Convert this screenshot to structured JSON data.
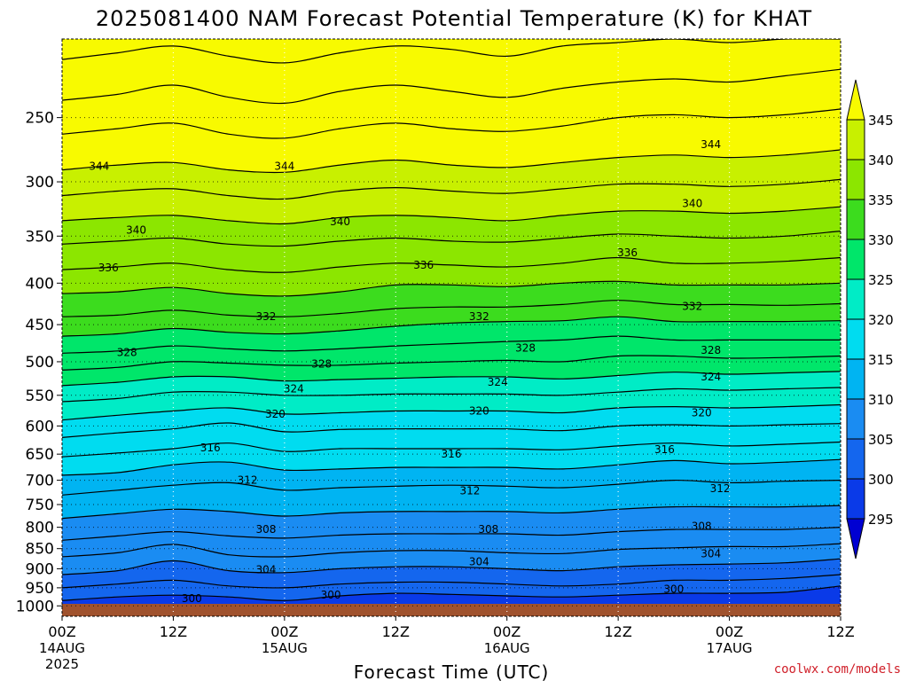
{
  "chart_data": {
    "type": "contour",
    "title": "2025081400 NAM Forecast Potential Temperature (K) for KHAT",
    "xlabel": "Forecast Time (UTC)",
    "credit": "coolwx.com/models",
    "y_scale": "log-pressure",
    "y_range_hPa": [
      200,
      1030
    ],
    "y_ticks": [
      "250",
      "300",
      "350",
      "400",
      "450",
      "500",
      "550",
      "600",
      "650",
      "700",
      "750",
      "800",
      "850",
      "900",
      "950",
      "1000"
    ],
    "x_range_hours": [
      0,
      84
    ],
    "x_ticks": [
      {
        "hour": 0,
        "label": "00Z",
        "sub1": "14AUG",
        "sub2": "2025"
      },
      {
        "hour": 12,
        "label": "12Z",
        "sub1": "",
        "sub2": ""
      },
      {
        "hour": 24,
        "label": "00Z",
        "sub1": "15AUG",
        "sub2": ""
      },
      {
        "hour": 36,
        "label": "12Z",
        "sub1": "",
        "sub2": ""
      },
      {
        "hour": 48,
        "label": "00Z",
        "sub1": "16AUG",
        "sub2": ""
      },
      {
        "hour": 60,
        "label": "12Z",
        "sub1": "",
        "sub2": ""
      },
      {
        "hour": 72,
        "label": "00Z",
        "sub1": "17AUG",
        "sub2": ""
      },
      {
        "hour": 84,
        "label": "12Z",
        "sub1": "",
        "sub2": ""
      }
    ],
    "colorbar": {
      "levels": [
        "295",
        "300",
        "305",
        "310",
        "315",
        "320",
        "325",
        "330",
        "335",
        "340",
        "345"
      ],
      "fill_colors": [
        "#0000d2",
        "#0a3ae8",
        "#1466ee",
        "#1a8cf2",
        "#00b4f2",
        "#00dcf0",
        "#00ecc6",
        "#00e66a",
        "#3cdc1e",
        "#8ce600",
        "#c8f000",
        "#f8fa00"
      ]
    },
    "contour_interval_K": 2,
    "sample_hours": [
      0,
      6,
      12,
      18,
      24,
      30,
      36,
      42,
      48,
      54,
      60,
      66,
      72,
      78,
      84
    ],
    "isentropes": [
      {
        "theta": 298,
        "p": [
          1008,
          1008,
          1008,
          1012,
          1010,
          1008,
          1008,
          1008,
          1010,
          1010,
          1008,
          1008,
          1008,
          1006,
          1002
        ]
      },
      {
        "theta": 300,
        "p": [
          985,
          975,
          970,
          975,
          985,
          972,
          965,
          968,
          972,
          975,
          970,
          965,
          965,
          962,
          945
        ]
      },
      {
        "theta": 302,
        "p": [
          950,
          940,
          930,
          945,
          950,
          940,
          935,
          935,
          940,
          945,
          940,
          930,
          930,
          925,
          915
        ]
      },
      {
        "theta": 304,
        "p": [
          915,
          905,
          880,
          905,
          910,
          900,
          895,
          895,
          900,
          905,
          895,
          890,
          888,
          885,
          875
        ]
      },
      {
        "theta": 306,
        "p": [
          870,
          860,
          840,
          865,
          870,
          860,
          855,
          855,
          860,
          862,
          852,
          848,
          845,
          845,
          838
        ]
      },
      {
        "theta": 308,
        "p": [
          830,
          820,
          810,
          820,
          825,
          818,
          815,
          815,
          815,
          818,
          810,
          805,
          805,
          805,
          800
        ]
      },
      {
        "theta": 310,
        "p": [
          780,
          770,
          760,
          765,
          775,
          768,
          765,
          765,
          765,
          768,
          760,
          755,
          755,
          755,
          752
        ]
      },
      {
        "theta": 312,
        "p": [
          730,
          720,
          710,
          705,
          720,
          715,
          712,
          710,
          712,
          715,
          708,
          700,
          705,
          702,
          700
        ]
      },
      {
        "theta": 314,
        "p": [
          690,
          685,
          670,
          665,
          680,
          678,
          675,
          675,
          675,
          678,
          670,
          662,
          668,
          665,
          660
        ]
      },
      {
        "theta": 316,
        "p": [
          655,
          648,
          640,
          630,
          645,
          640,
          640,
          640,
          640,
          642,
          635,
          630,
          635,
          632,
          628
        ]
      },
      {
        "theta": 318,
        "p": [
          620,
          612,
          605,
          595,
          610,
          606,
          605,
          605,
          605,
          608,
          600,
          598,
          600,
          598,
          596
        ]
      },
      {
        "theta": 320,
        "p": [
          590,
          582,
          575,
          570,
          580,
          578,
          575,
          575,
          575,
          578,
          570,
          568,
          570,
          568,
          565
        ]
      },
      {
        "theta": 322,
        "p": [
          560,
          555,
          545,
          545,
          550,
          550,
          548,
          548,
          548,
          550,
          545,
          540,
          542,
          540,
          538
        ]
      },
      {
        "theta": 324,
        "p": [
          535,
          530,
          522,
          522,
          528,
          526,
          524,
          522,
          522,
          525,
          520,
          515,
          518,
          516,
          514
        ]
      },
      {
        "theta": 326,
        "p": [
          512,
          508,
          500,
          502,
          505,
          505,
          502,
          500,
          498,
          500,
          492,
          492,
          495,
          494,
          492
        ]
      },
      {
        "theta": 328,
        "p": [
          488,
          485,
          478,
          482,
          485,
          482,
          478,
          475,
          472,
          470,
          465,
          470,
          470,
          470,
          470
        ]
      },
      {
        "theta": 330,
        "p": [
          465,
          462,
          455,
          460,
          462,
          458,
          452,
          448,
          446,
          445,
          440,
          446,
          446,
          446,
          445
        ]
      },
      {
        "theta": 332,
        "p": [
          440,
          438,
          432,
          438,
          440,
          436,
          430,
          428,
          428,
          425,
          420,
          425,
          425,
          426,
          424
        ]
      },
      {
        "theta": 334,
        "p": [
          412,
          410,
          405,
          412,
          415,
          410,
          402,
          402,
          404,
          400,
          398,
          402,
          402,
          402,
          400
        ]
      },
      {
        "theta": 336,
        "p": [
          385,
          382,
          378,
          385,
          388,
          382,
          378,
          380,
          382,
          378,
          372,
          378,
          378,
          376,
          372
        ]
      },
      {
        "theta": 338,
        "p": [
          358,
          355,
          352,
          358,
          360,
          355,
          352,
          355,
          356,
          352,
          348,
          350,
          352,
          350,
          345
        ]
      },
      {
        "theta": 340,
        "p": [
          335,
          332,
          330,
          335,
          338,
          332,
          330,
          332,
          335,
          330,
          326,
          326,
          328,
          326,
          322
        ]
      },
      {
        "theta": 342,
        "p": [
          312,
          308,
          306,
          312,
          315,
          308,
          305,
          308,
          310,
          306,
          302,
          302,
          304,
          302,
          298
        ]
      },
      {
        "theta": 344,
        "p": [
          290,
          286,
          284,
          290,
          292,
          286,
          282,
          286,
          288,
          284,
          280,
          278,
          280,
          278,
          274
        ]
      },
      {
        "theta": 346,
        "p": [
          262,
          258,
          254,
          262,
          265,
          258,
          254,
          258,
          260,
          256,
          250,
          248,
          250,
          248,
          244
        ]
      },
      {
        "theta": 348,
        "p": [
          238,
          234,
          228,
          236,
          240,
          232,
          228,
          232,
          236,
          230,
          226,
          224,
          226,
          222,
          218
        ]
      },
      {
        "theta": 350,
        "p": [
          212,
          208,
          204,
          210,
          214,
          208,
          204,
          206,
          210,
          204,
          202,
          200,
          202,
          200,
          200
        ]
      }
    ],
    "contour_labels": [
      {
        "text": "344",
        "hour": 4,
        "p": 287
      },
      {
        "text": "344",
        "hour": 24,
        "p": 287
      },
      {
        "text": "344",
        "hour": 70,
        "p": 270
      },
      {
        "text": "340",
        "hour": 8,
        "p": 344
      },
      {
        "text": "340",
        "hour": 30,
        "p": 336
      },
      {
        "text": "340",
        "hour": 68,
        "p": 319
      },
      {
        "text": "336",
        "hour": 5,
        "p": 383
      },
      {
        "text": "336",
        "hour": 39,
        "p": 380
      },
      {
        "text": "336",
        "hour": 61,
        "p": 367
      },
      {
        "text": "332",
        "hour": 22,
        "p": 440
      },
      {
        "text": "332",
        "hour": 45,
        "p": 440
      },
      {
        "text": "332",
        "hour": 68,
        "p": 427
      },
      {
        "text": "328",
        "hour": 7,
        "p": 487
      },
      {
        "text": "328",
        "hour": 28,
        "p": 503
      },
      {
        "text": "328",
        "hour": 50,
        "p": 481
      },
      {
        "text": "328",
        "hour": 70,
        "p": 484
      },
      {
        "text": "324",
        "hour": 25,
        "p": 540
      },
      {
        "text": "324",
        "hour": 47,
        "p": 530
      },
      {
        "text": "324",
        "hour": 70,
        "p": 522
      },
      {
        "text": "320",
        "hour": 23,
        "p": 580
      },
      {
        "text": "320",
        "hour": 45,
        "p": 575
      },
      {
        "text": "320",
        "hour": 69,
        "p": 578
      },
      {
        "text": "316",
        "hour": 16,
        "p": 638
      },
      {
        "text": "316",
        "hour": 42,
        "p": 650
      },
      {
        "text": "316",
        "hour": 65,
        "p": 642
      },
      {
        "text": "312",
        "hour": 20,
        "p": 700
      },
      {
        "text": "312",
        "hour": 44,
        "p": 721
      },
      {
        "text": "312",
        "hour": 71,
        "p": 717
      },
      {
        "text": "308",
        "hour": 22,
        "p": 805
      },
      {
        "text": "308",
        "hour": 46,
        "p": 805
      },
      {
        "text": "308",
        "hour": 69,
        "p": 798
      },
      {
        "text": "304",
        "hour": 22,
        "p": 902
      },
      {
        "text": "304",
        "hour": 45,
        "p": 882
      },
      {
        "text": "304",
        "hour": 70,
        "p": 862
      },
      {
        "text": "300",
        "hour": 14,
        "p": 980
      },
      {
        "text": "300",
        "hour": 29,
        "p": 970
      },
      {
        "text": "300",
        "hour": 66,
        "p": 954
      }
    ]
  }
}
